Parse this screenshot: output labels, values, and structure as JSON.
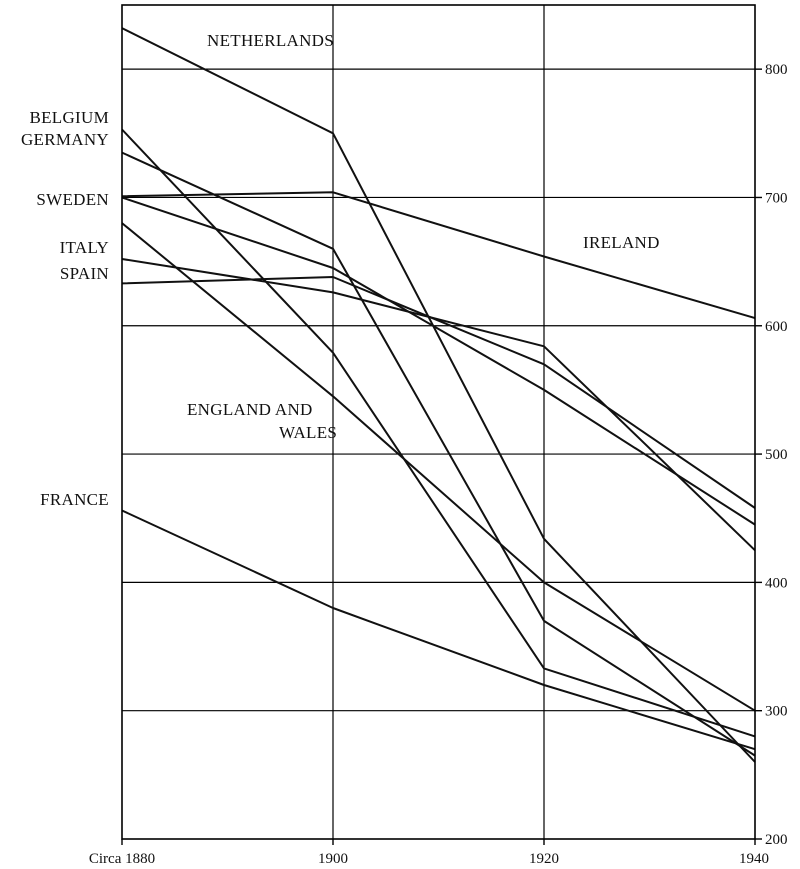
{
  "chart_data": {
    "type": "line",
    "title": "",
    "xlabel": "",
    "ylabel": "",
    "x": [
      1880,
      1900,
      1920,
      1940
    ],
    "x_tick_labels": [
      "Circa 1880",
      "1900",
      "1920",
      "1940"
    ],
    "ylim": [
      200,
      850
    ],
    "y_ticks": [
      200,
      300,
      400,
      500,
      600,
      700,
      800
    ],
    "y_tick_labels": [
      "200",
      "300",
      "400",
      "500",
      "600",
      "700",
      "800"
    ],
    "y_axis_side": "right",
    "grid": true,
    "legend": "none",
    "series": [
      {
        "name": "NETHERLANDS",
        "values": [
          832,
          750,
          434,
          260
        ]
      },
      {
        "name": "BELGIUM",
        "values": [
          753,
          579,
          333,
          280
        ]
      },
      {
        "name": "GERMANY",
        "values": [
          735,
          660,
          370,
          265
        ]
      },
      {
        "name": "SWEDEN",
        "values": [
          700,
          645,
          550,
          445
        ]
      },
      {
        "name": "IRELAND",
        "values": [
          701,
          704,
          654,
          606
        ]
      },
      {
        "name": "ITALY",
        "values": [
          652,
          626,
          584,
          425
        ]
      },
      {
        "name": "SPAIN",
        "values": [
          633,
          638,
          570,
          458
        ]
      },
      {
        "name": "ENGLAND AND WALES",
        "values": [
          680,
          545,
          400,
          300
        ]
      },
      {
        "name": "FRANCE",
        "values": [
          456,
          380,
          320,
          270
        ]
      }
    ],
    "annotations": [
      {
        "text": "NETHERLANDS"
      },
      {
        "text": "BELGIUM"
      },
      {
        "text": "GERMANY"
      },
      {
        "text": "SWEDEN"
      },
      {
        "text": "ITALY"
      },
      {
        "text": "SPAIN"
      },
      {
        "text": "IRELAND"
      },
      {
        "text": "ENGLAND AND"
      },
      {
        "text": "WALES"
      },
      {
        "text": "FRANCE"
      }
    ]
  }
}
